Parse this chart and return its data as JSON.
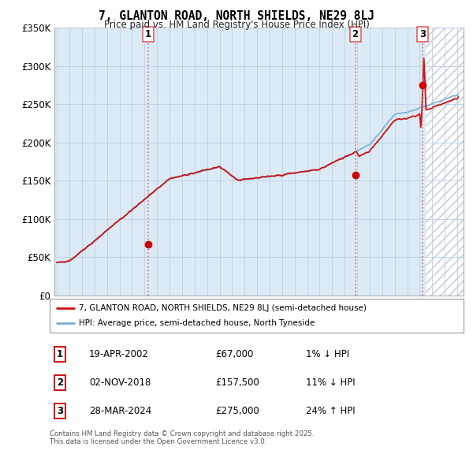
{
  "title": "7, GLANTON ROAD, NORTH SHIELDS, NE29 8LJ",
  "subtitle": "Price paid vs. HM Land Registry's House Price Index (HPI)",
  "ylim": [
    0,
    350000
  ],
  "yticks": [
    0,
    50000,
    100000,
    150000,
    200000,
    250000,
    300000,
    350000
  ],
  "ytick_labels": [
    "£0",
    "£50K",
    "£100K",
    "£150K",
    "£200K",
    "£250K",
    "£300K",
    "£350K"
  ],
  "x_start_year": 1995,
  "x_end_year": 2027,
  "sale_dates_float": [
    2002.3,
    2018.84,
    2024.24
  ],
  "sale_prices": [
    67000,
    157500,
    275000
  ],
  "sale_labels": [
    "1",
    "2",
    "3"
  ],
  "vline_color": "#e06060",
  "sale_marker_color": "#cc0000",
  "hpi_line_color": "#7aaed6",
  "price_line_color": "#cc1111",
  "chart_bg_color": "#dceaf5",
  "fig_bg_color": "#ffffff",
  "grid_color": "#c0d4e8",
  "hatch_color": "#c0c8d8",
  "legend_items": [
    "7, GLANTON ROAD, NORTH SHIELDS, NE29 8LJ (semi-detached house)",
    "HPI: Average price, semi-detached house, North Tyneside"
  ],
  "table_rows": [
    [
      "1",
      "19-APR-2002",
      "£67,000",
      "1% ↓ HPI"
    ],
    [
      "2",
      "02-NOV-2018",
      "£157,500",
      "11% ↓ HPI"
    ],
    [
      "3",
      "28-MAR-2024",
      "£275,000",
      "24% ↑ HPI"
    ]
  ],
  "footnote": "Contains HM Land Registry data © Crown copyright and database right 2025.\nThis data is licensed under the Open Government Licence v3.0."
}
